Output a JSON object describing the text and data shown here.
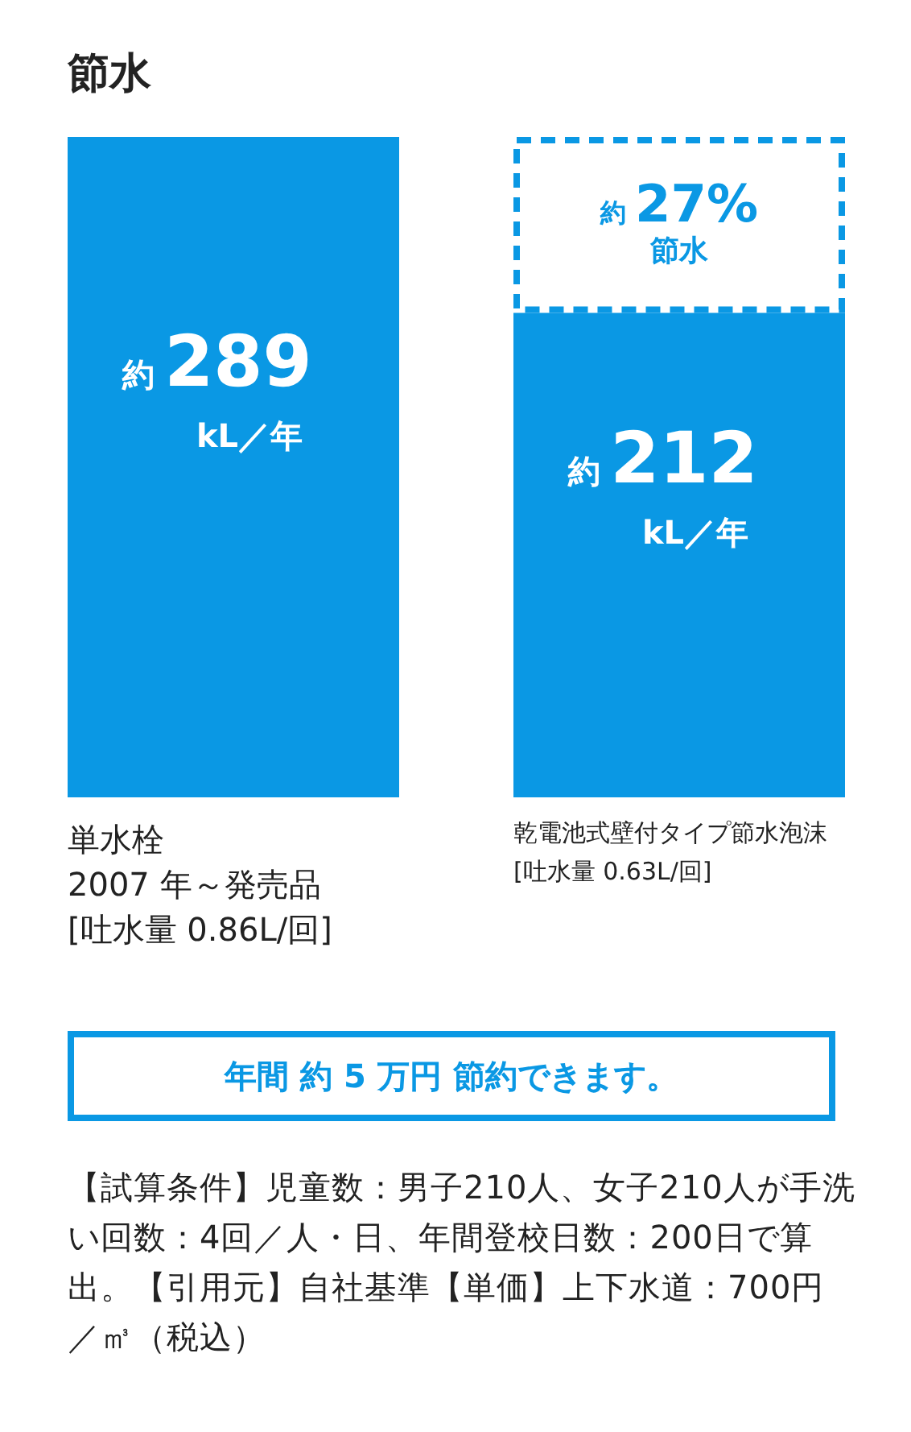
{
  "chart_data": {
    "type": "bar",
    "title": "節水",
    "categories": [
      "単水栓\n2007 年～発売品\n[吐水量 0.86L/回]",
      "乾電池式壁付タイプ節水泡沫\n[吐水量 0.63L/回]"
    ],
    "values": [
      289,
      212
    ],
    "color": "#0a98e4",
    "value_labels": [
      "約289kL／年",
      "約212kL／年"
    ],
    "annotations": [
      "約 27% 節水",
      "年間 約 5 万円 節約できます。",
      "【試算条件】児童数：男子210人、女子210人が手洗い回数：4回／人・日、年間登校日数：200日で算出。【引用元】自社基準【単価】上下水道：700円／㎥（税込）"
    ]
  }
}
